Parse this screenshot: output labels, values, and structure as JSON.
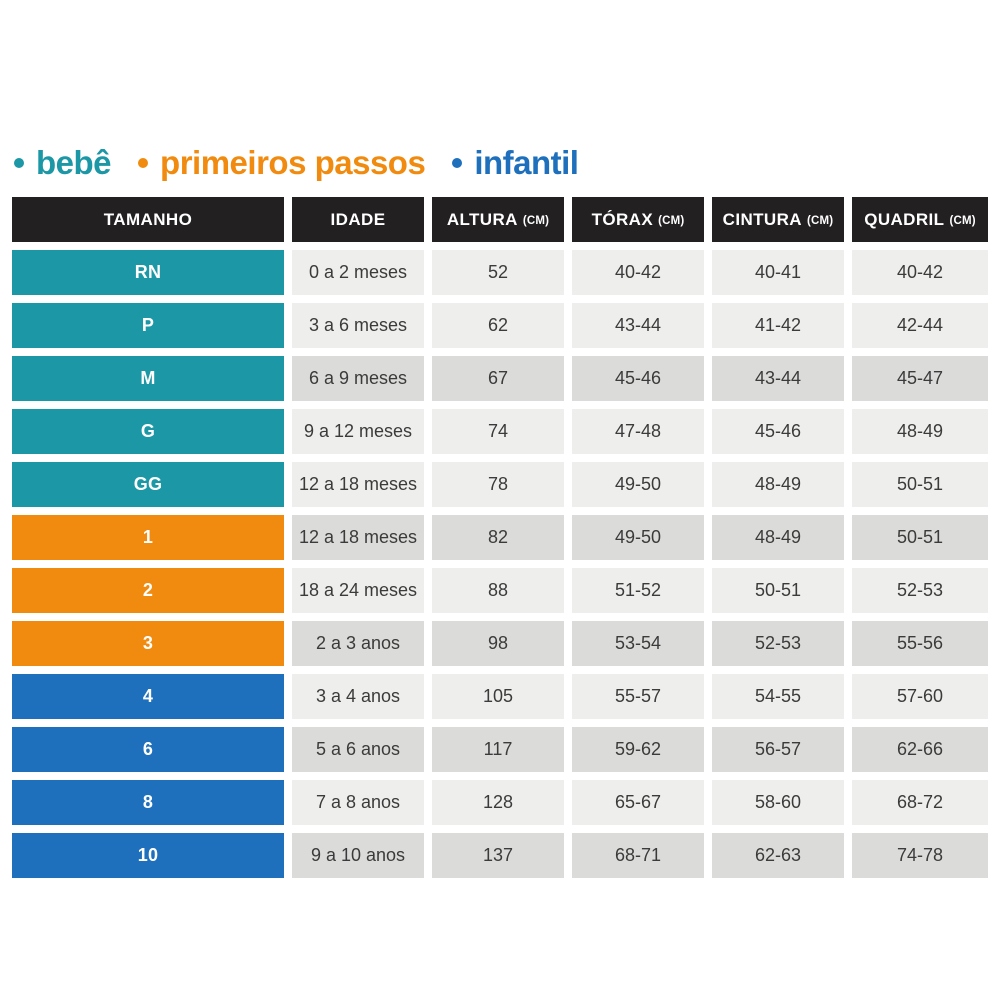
{
  "legend": {
    "items": [
      {
        "label": "bebê",
        "group": "bebe"
      },
      {
        "label": "primeiros passos",
        "group": "primeiros-passos"
      },
      {
        "label": "infantil",
        "group": "infantil"
      }
    ]
  },
  "table": {
    "headers": [
      {
        "label": "TAMANHO",
        "unit": ""
      },
      {
        "label": "IDADE",
        "unit": ""
      },
      {
        "label": "ALTURA",
        "unit": "(CM)"
      },
      {
        "label": "TÓRAX",
        "unit": "(CM)"
      },
      {
        "label": "CINTURA",
        "unit": "(CM)"
      },
      {
        "label": "QUADRIL",
        "unit": "(CM)"
      }
    ],
    "rows": [
      {
        "size": "RN",
        "group": "bebe",
        "shade": "light",
        "cells": [
          "0 a 2 meses",
          "52",
          "40-42",
          "40-41",
          "40-42"
        ]
      },
      {
        "size": "P",
        "group": "bebe",
        "shade": "light",
        "cells": [
          "3 a 6 meses",
          "62",
          "43-44",
          "41-42",
          "42-44"
        ]
      },
      {
        "size": "M",
        "group": "bebe",
        "shade": "dark",
        "cells": [
          "6 a 9 meses",
          "67",
          "45-46",
          "43-44",
          "45-47"
        ]
      },
      {
        "size": "G",
        "group": "bebe",
        "shade": "light",
        "cells": [
          "9 a 12 meses",
          "74",
          "47-48",
          "45-46",
          "48-49"
        ]
      },
      {
        "size": "GG",
        "group": "bebe",
        "shade": "light",
        "cells": [
          "12 a 18 meses",
          "78",
          "49-50",
          "48-49",
          "50-51"
        ]
      },
      {
        "size": "1",
        "group": "primeiros-passos",
        "shade": "dark",
        "cells": [
          "12 a 18 meses",
          "82",
          "49-50",
          "48-49",
          "50-51"
        ]
      },
      {
        "size": "2",
        "group": "primeiros-passos",
        "shade": "light",
        "cells": [
          "18 a 24 meses",
          "88",
          "51-52",
          "50-51",
          "52-53"
        ]
      },
      {
        "size": "3",
        "group": "primeiros-passos",
        "shade": "dark",
        "cells": [
          "2 a 3 anos",
          "98",
          "53-54",
          "52-53",
          "55-56"
        ]
      },
      {
        "size": "4",
        "group": "infantil",
        "shade": "light",
        "cells": [
          "3 a 4 anos",
          "105",
          "55-57",
          "54-55",
          "57-60"
        ]
      },
      {
        "size": "6",
        "group": "infantil",
        "shade": "dark",
        "cells": [
          "5 a 6 anos",
          "117",
          "59-62",
          "56-57",
          "62-66"
        ]
      },
      {
        "size": "8",
        "group": "infantil",
        "shade": "light",
        "cells": [
          "7 a 8 anos",
          "128",
          "65-67",
          "58-60",
          "68-72"
        ]
      },
      {
        "size": "10",
        "group": "infantil",
        "shade": "dark",
        "cells": [
          "9 a 10 anos",
          "137",
          "68-71",
          "62-63",
          "74-78"
        ]
      }
    ]
  },
  "colors": {
    "header_bg": "#232021",
    "row_light": "#EEEEEC",
    "row_dark": "#DBDBD9",
    "cell_text": "#3B3B3B",
    "groups": {
      "bebe": "#1C97A6",
      "primeiros-passos": "#F18B10",
      "infantil": "#1E6FBC"
    }
  },
  "chart_data": {
    "type": "table",
    "title": "",
    "legend": [
      "bebê",
      "primeiros passos",
      "infantil"
    ],
    "columns": [
      "TAMANHO",
      "IDADE",
      "ALTURA (CM)",
      "TÓRAX (CM)",
      "CINTURA (CM)",
      "QUADRIL (CM)"
    ],
    "rows": [
      [
        "RN",
        "0 a 2 meses",
        "52",
        "40-42",
        "40-41",
        "40-42"
      ],
      [
        "P",
        "3 a 6 meses",
        "62",
        "43-44",
        "41-42",
        "42-44"
      ],
      [
        "M",
        "6 a 9 meses",
        "67",
        "45-46",
        "43-44",
        "45-47"
      ],
      [
        "G",
        "9 a 12 meses",
        "74",
        "47-48",
        "45-46",
        "48-49"
      ],
      [
        "GG",
        "12 a 18 meses",
        "78",
        "49-50",
        "48-49",
        "50-51"
      ],
      [
        "1",
        "12 a 18 meses",
        "82",
        "49-50",
        "48-49",
        "50-51"
      ],
      [
        "2",
        "18 a 24 meses",
        "88",
        "51-52",
        "50-51",
        "52-53"
      ],
      [
        "3",
        "2 a 3 anos",
        "98",
        "53-54",
        "52-53",
        "55-56"
      ],
      [
        "4",
        "3 a 4 anos",
        "105",
        "55-57",
        "54-55",
        "57-60"
      ],
      [
        "6",
        "5 a 6 anos",
        "117",
        "59-62",
        "56-57",
        "62-66"
      ],
      [
        "8",
        "7 a 8 anos",
        "128",
        "65-67",
        "58-60",
        "68-72"
      ],
      [
        "10",
        "9 a 10 anos",
        "137",
        "68-71",
        "62-63",
        "74-78"
      ]
    ],
    "row_groups": [
      "bebe",
      "bebe",
      "bebe",
      "bebe",
      "bebe",
      "primeiros-passos",
      "primeiros-passos",
      "primeiros-passos",
      "infantil",
      "infantil",
      "infantil",
      "infantil"
    ]
  }
}
